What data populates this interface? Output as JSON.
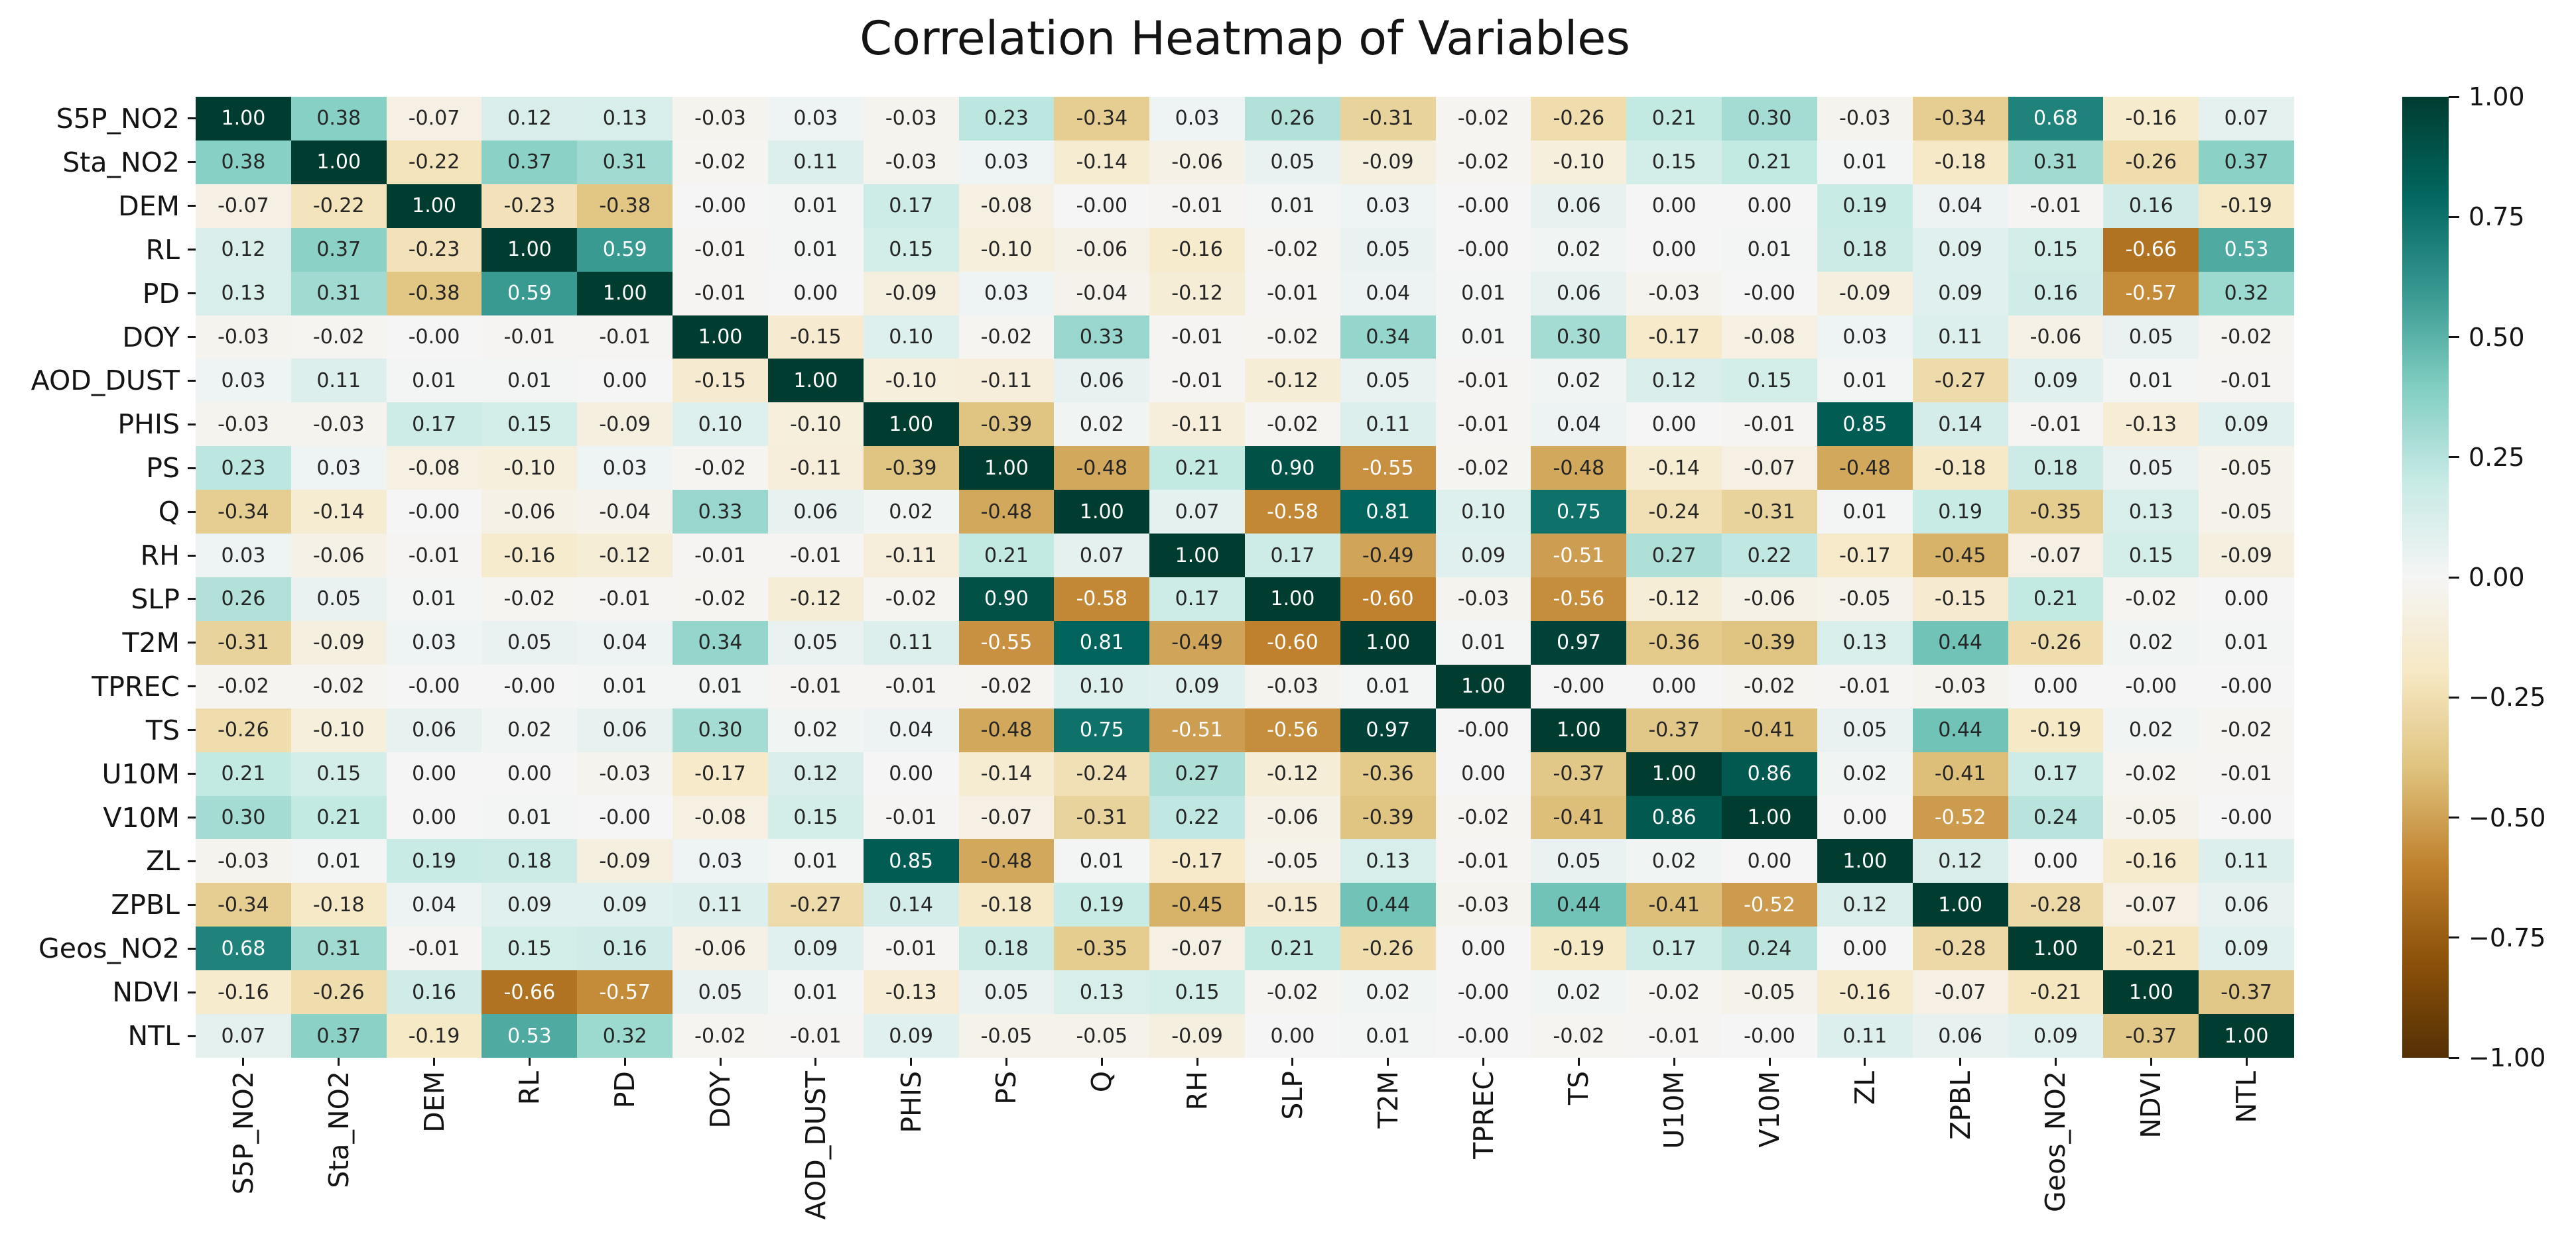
{
  "title": "Correlation Heatmap of Variables",
  "chart_data": {
    "type": "heatmap",
    "title": "Correlation Heatmap of Variables",
    "legend_position": "right-colorbar",
    "grid": "off",
    "variables": [
      "S5P_NO2",
      "Sta_NO2",
      "DEM",
      "RL",
      "PD",
      "DOY",
      "AOD_DUST",
      "PHIS",
      "PS",
      "Q",
      "RH",
      "SLP",
      "T2M",
      "TPREC",
      "TS",
      "U10M",
      "V10M",
      "ZL",
      "ZPBL",
      "Geos_NO2",
      "NDVI",
      "NTL"
    ],
    "matrix": [
      [
        "1.00",
        "0.38",
        "-0.07",
        "0.12",
        "0.13",
        "-0.03",
        "0.03",
        "-0.03",
        "0.23",
        "-0.34",
        "0.03",
        "0.26",
        "-0.31",
        "-0.02",
        "-0.26",
        "0.21",
        "0.30",
        "-0.03",
        "-0.34",
        "0.68",
        "-0.16",
        "0.07"
      ],
      [
        "0.38",
        "1.00",
        "-0.22",
        "0.37",
        "0.31",
        "-0.02",
        "0.11",
        "-0.03",
        "0.03",
        "-0.14",
        "-0.06",
        "0.05",
        "-0.09",
        "-0.02",
        "-0.10",
        "0.15",
        "0.21",
        "0.01",
        "-0.18",
        "0.31",
        "-0.26",
        "0.37"
      ],
      [
        "-0.07",
        "-0.22",
        "1.00",
        "-0.23",
        "-0.38",
        "-0.00",
        "0.01",
        "0.17",
        "-0.08",
        "-0.00",
        "-0.01",
        "0.01",
        "0.03",
        "-0.00",
        "0.06",
        "0.00",
        "0.00",
        "0.19",
        "0.04",
        "-0.01",
        "0.16",
        "-0.19"
      ],
      [
        "0.12",
        "0.37",
        "-0.23",
        "1.00",
        "0.59",
        "-0.01",
        "0.01",
        "0.15",
        "-0.10",
        "-0.06",
        "-0.16",
        "-0.02",
        "0.05",
        "-0.00",
        "0.02",
        "0.00",
        "0.01",
        "0.18",
        "0.09",
        "0.15",
        "-0.66",
        "0.53"
      ],
      [
        "0.13",
        "0.31",
        "-0.38",
        "0.59",
        "1.00",
        "-0.01",
        "0.00",
        "-0.09",
        "0.03",
        "-0.04",
        "-0.12",
        "-0.01",
        "0.04",
        "0.01",
        "0.06",
        "-0.03",
        "-0.00",
        "-0.09",
        "0.09",
        "0.16",
        "-0.57",
        "0.32"
      ],
      [
        "-0.03",
        "-0.02",
        "-0.00",
        "-0.01",
        "-0.01",
        "1.00",
        "-0.15",
        "0.10",
        "-0.02",
        "0.33",
        "-0.01",
        "-0.02",
        "0.34",
        "0.01",
        "0.30",
        "-0.17",
        "-0.08",
        "0.03",
        "0.11",
        "-0.06",
        "0.05",
        "-0.02"
      ],
      [
        "0.03",
        "0.11",
        "0.01",
        "0.01",
        "0.00",
        "-0.15",
        "1.00",
        "-0.10",
        "-0.11",
        "0.06",
        "-0.01",
        "-0.12",
        "0.05",
        "-0.01",
        "0.02",
        "0.12",
        "0.15",
        "0.01",
        "-0.27",
        "0.09",
        "0.01",
        "-0.01"
      ],
      [
        "-0.03",
        "-0.03",
        "0.17",
        "0.15",
        "-0.09",
        "0.10",
        "-0.10",
        "1.00",
        "-0.39",
        "0.02",
        "-0.11",
        "-0.02",
        "0.11",
        "-0.01",
        "0.04",
        "0.00",
        "-0.01",
        "0.85",
        "0.14",
        "-0.01",
        "-0.13",
        "0.09"
      ],
      [
        "0.23",
        "0.03",
        "-0.08",
        "-0.10",
        "0.03",
        "-0.02",
        "-0.11",
        "-0.39",
        "1.00",
        "-0.48",
        "0.21",
        "0.90",
        "-0.55",
        "-0.02",
        "-0.48",
        "-0.14",
        "-0.07",
        "-0.48",
        "-0.18",
        "0.18",
        "0.05",
        "-0.05"
      ],
      [
        "-0.34",
        "-0.14",
        "-0.00",
        "-0.06",
        "-0.04",
        "0.33",
        "0.06",
        "0.02",
        "-0.48",
        "1.00",
        "0.07",
        "-0.58",
        "0.81",
        "0.10",
        "0.75",
        "-0.24",
        "-0.31",
        "0.01",
        "0.19",
        "-0.35",
        "0.13",
        "-0.05"
      ],
      [
        "0.03",
        "-0.06",
        "-0.01",
        "-0.16",
        "-0.12",
        "-0.01",
        "-0.01",
        "-0.11",
        "0.21",
        "0.07",
        "1.00",
        "0.17",
        "-0.49",
        "0.09",
        "-0.51",
        "0.27",
        "0.22",
        "-0.17",
        "-0.45",
        "-0.07",
        "0.15",
        "-0.09"
      ],
      [
        "0.26",
        "0.05",
        "0.01",
        "-0.02",
        "-0.01",
        "-0.02",
        "-0.12",
        "-0.02",
        "0.90",
        "-0.58",
        "0.17",
        "1.00",
        "-0.60",
        "-0.03",
        "-0.56",
        "-0.12",
        "-0.06",
        "-0.05",
        "-0.15",
        "0.21",
        "-0.02",
        "0.00"
      ],
      [
        "-0.31",
        "-0.09",
        "0.03",
        "0.05",
        "0.04",
        "0.34",
        "0.05",
        "0.11",
        "-0.55",
        "0.81",
        "-0.49",
        "-0.60",
        "1.00",
        "0.01",
        "0.97",
        "-0.36",
        "-0.39",
        "0.13",
        "0.44",
        "-0.26",
        "0.02",
        "0.01"
      ],
      [
        "-0.02",
        "-0.02",
        "-0.00",
        "-0.00",
        "0.01",
        "0.01",
        "-0.01",
        "-0.01",
        "-0.02",
        "0.10",
        "0.09",
        "-0.03",
        "0.01",
        "1.00",
        "-0.00",
        "0.00",
        "-0.02",
        "-0.01",
        "-0.03",
        "0.00",
        "-0.00",
        "-0.00"
      ],
      [
        "-0.26",
        "-0.10",
        "0.06",
        "0.02",
        "0.06",
        "0.30",
        "0.02",
        "0.04",
        "-0.48",
        "0.75",
        "-0.51",
        "-0.56",
        "0.97",
        "-0.00",
        "1.00",
        "-0.37",
        "-0.41",
        "0.05",
        "0.44",
        "-0.19",
        "0.02",
        "-0.02"
      ],
      [
        "0.21",
        "0.15",
        "0.00",
        "0.00",
        "-0.03",
        "-0.17",
        "0.12",
        "0.00",
        "-0.14",
        "-0.24",
        "0.27",
        "-0.12",
        "-0.36",
        "0.00",
        "-0.37",
        "1.00",
        "0.86",
        "0.02",
        "-0.41",
        "0.17",
        "-0.02",
        "-0.01"
      ],
      [
        "0.30",
        "0.21",
        "0.00",
        "0.01",
        "-0.00",
        "-0.08",
        "0.15",
        "-0.01",
        "-0.07",
        "-0.31",
        "0.22",
        "-0.06",
        "-0.39",
        "-0.02",
        "-0.41",
        "0.86",
        "1.00",
        "0.00",
        "-0.52",
        "0.24",
        "-0.05",
        "-0.00"
      ],
      [
        "-0.03",
        "0.01",
        "0.19",
        "0.18",
        "-0.09",
        "0.03",
        "0.01",
        "0.85",
        "-0.48",
        "0.01",
        "-0.17",
        "-0.05",
        "0.13",
        "-0.01",
        "0.05",
        "0.02",
        "0.00",
        "1.00",
        "0.12",
        "0.00",
        "-0.16",
        "0.11"
      ],
      [
        "-0.34",
        "-0.18",
        "0.04",
        "0.09",
        "0.09",
        "0.11",
        "-0.27",
        "0.14",
        "-0.18",
        "0.19",
        "-0.45",
        "-0.15",
        "0.44",
        "-0.03",
        "0.44",
        "-0.41",
        "-0.52",
        "0.12",
        "1.00",
        "-0.28",
        "-0.07",
        "0.06"
      ],
      [
        "0.68",
        "0.31",
        "-0.01",
        "0.15",
        "0.16",
        "-0.06",
        "0.09",
        "-0.01",
        "0.18",
        "-0.35",
        "-0.07",
        "0.21",
        "-0.26",
        "0.00",
        "-0.19",
        "0.17",
        "0.24",
        "0.00",
        "-0.28",
        "1.00",
        "-0.21",
        "0.09"
      ],
      [
        "-0.16",
        "-0.26",
        "0.16",
        "-0.66",
        "-0.57",
        "0.05",
        "0.01",
        "-0.13",
        "0.05",
        "0.13",
        "0.15",
        "-0.02",
        "0.02",
        "-0.00",
        "0.02",
        "-0.02",
        "-0.05",
        "-0.16",
        "-0.07",
        "-0.21",
        "1.00",
        "-0.37"
      ],
      [
        "0.07",
        "0.37",
        "-0.19",
        "0.53",
        "0.32",
        "-0.02",
        "-0.01",
        "0.09",
        "-0.05",
        "-0.05",
        "-0.09",
        "0.00",
        "0.01",
        "-0.00",
        "-0.02",
        "-0.01",
        "-0.00",
        "0.11",
        "0.06",
        "0.09",
        "-0.37",
        "1.00"
      ]
    ],
    "colorbar": {
      "vmin": -1.0,
      "vmax": 1.0,
      "ticks": [
        "1.00",
        "0.75",
        "0.50",
        "0.25",
        "0.00",
        "−0.25",
        "−0.50",
        "−0.75",
        "−1.00"
      ],
      "colormap_name": "BrBG",
      "colormap_stops_low_to_high": [
        "#543005",
        "#8c510a",
        "#bf812d",
        "#dfc27d",
        "#f6e8c3",
        "#f5f5f5",
        "#c7eae5",
        "#80cdc1",
        "#35978f",
        "#01665e",
        "#003c30"
      ]
    },
    "annotation_colors": {
      "on_light": "#262626",
      "on_dark": "#ffffff"
    },
    "background_color": "#ffffff"
  }
}
